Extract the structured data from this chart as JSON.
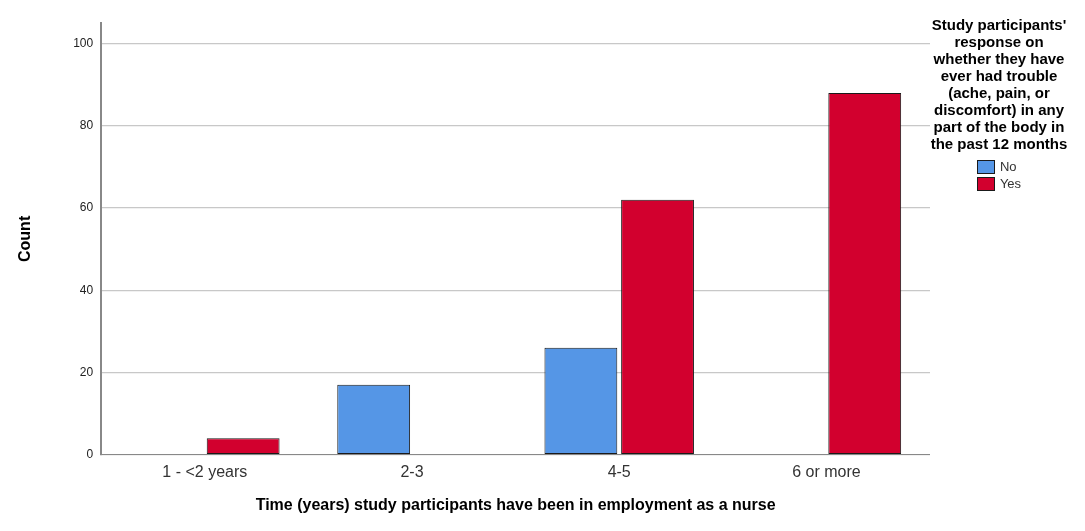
{
  "chart_data": {
    "type": "bar",
    "xlabel": "Time (years) study participants have been in employment as a nurse",
    "ylabel": "Count",
    "legend_title": "Study participants' response on whether they have ever had trouble (ache, pain, or discomfort) in any part of the body in the past 12 months",
    "categories": [
      "1 - <2 years",
      "2-3",
      "4-5",
      "6 or more"
    ],
    "series": [
      {
        "name": "No",
        "color": "#5596e6",
        "values": [
          0,
          17,
          26,
          0
        ]
      },
      {
        "name": "Yes",
        "color": "#d2002e",
        "values": [
          4,
          0,
          62,
          88
        ]
      }
    ],
    "ylim": [
      0,
      105
    ],
    "yticks": [
      0,
      20,
      40,
      60,
      80,
      100
    ],
    "grid": "y",
    "legend": "right"
  }
}
